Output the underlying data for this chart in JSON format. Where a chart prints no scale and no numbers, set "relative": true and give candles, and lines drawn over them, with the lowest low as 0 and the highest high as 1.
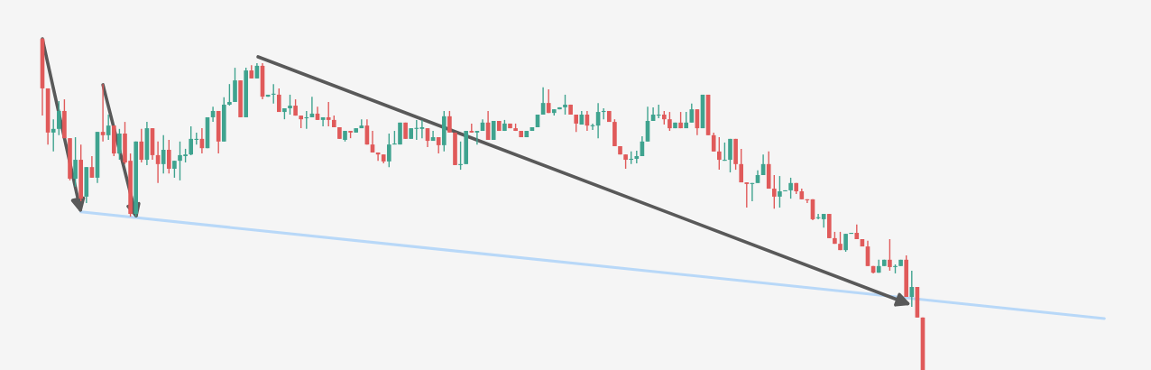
{
  "chart_data": {
    "type": "candlestick",
    "relative": true,
    "categories": [
      null,
      null,
      null,
      null,
      null,
      null,
      null,
      null,
      null,
      null,
      null,
      null,
      null,
      null,
      null,
      null,
      null,
      null,
      null,
      null,
      null,
      null,
      null,
      null,
      null,
      null,
      null,
      null,
      null,
      null,
      null,
      null,
      null,
      null,
      null,
      null,
      null,
      null,
      null,
      null,
      null,
      null,
      null,
      null,
      null,
      null,
      null,
      null,
      null,
      null,
      null,
      null,
      null,
      null,
      null,
      null,
      null,
      null,
      null,
      null,
      null,
      null,
      null,
      null,
      null,
      null,
      null,
      null,
      null,
      null,
      null,
      null,
      null,
      null,
      null,
      null,
      null,
      null,
      null,
      null,
      null,
      null,
      null,
      null,
      null,
      null,
      null,
      null,
      null,
      null,
      null,
      null,
      null,
      null,
      null,
      null,
      null,
      null,
      null,
      null,
      null,
      null,
      null,
      null,
      null,
      null,
      null,
      null,
      null,
      null,
      null,
      null,
      null,
      null,
      null,
      null,
      null,
      null,
      null,
      null,
      null,
      null,
      null,
      null,
      null,
      null,
      null,
      null,
      null,
      null,
      null,
      null,
      null,
      null,
      null,
      null,
      null,
      null,
      null,
      null,
      null,
      null,
      null,
      null,
      null,
      null,
      null,
      null,
      null,
      null,
      null,
      null,
      null,
      null,
      null,
      null,
      null,
      null,
      null,
      null,
      null,
      null,
      null,
      null,
      null,
      null,
      null,
      null,
      null,
      null,
      null,
      null,
      null,
      null,
      null,
      null,
      null,
      null,
      null,
      null,
      null,
      null,
      null,
      null,
      null,
      null,
      null,
      null,
      null,
      null,
      null,
      null,
      null,
      null
    ],
    "ohlc": [
      [
        0.997,
        1.0,
        0.766,
        0.848
      ],
      [
        0.848,
        0.848,
        0.679,
        0.715
      ],
      [
        0.715,
        0.755,
        0.658,
        0.726
      ],
      [
        0.726,
        0.81,
        0.707,
        0.78
      ],
      [
        0.78,
        0.815,
        0.698,
        0.698
      ],
      [
        0.698,
        0.698,
        0.571,
        0.576
      ],
      [
        0.576,
        0.701,
        0.552,
        0.633
      ],
      [
        0.633,
        0.679,
        0.508,
        0.516
      ],
      [
        0.522,
        0.611,
        0.503,
        0.611
      ],
      [
        0.611,
        0.644,
        0.579,
        0.579
      ],
      [
        0.579,
        0.717,
        0.563,
        0.717
      ],
      [
        0.717,
        0.861,
        0.688,
        0.707
      ],
      [
        0.707,
        0.769,
        0.693,
        0.736
      ],
      [
        0.736,
        0.736,
        0.644,
        0.652
      ],
      [
        0.652,
        0.726,
        0.633,
        0.712
      ],
      [
        0.712,
        0.747,
        0.62,
        0.625
      ],
      [
        0.63,
        0.652,
        0.462,
        0.47
      ],
      [
        0.47,
        0.688,
        0.462,
        0.688
      ],
      [
        0.688,
        0.726,
        0.625,
        0.633
      ],
      [
        0.633,
        0.747,
        0.617,
        0.728
      ],
      [
        0.728,
        0.728,
        0.633,
        0.647
      ],
      [
        0.647,
        0.688,
        0.563,
        0.62
      ],
      [
        0.62,
        0.707,
        0.592,
        0.663
      ],
      [
        0.663,
        0.693,
        0.592,
        0.606
      ],
      [
        0.606,
        0.63,
        0.579,
        0.63
      ],
      [
        0.63,
        0.688,
        0.571,
        0.647
      ],
      [
        0.644,
        0.666,
        0.625,
        0.649
      ],
      [
        0.649,
        0.734,
        0.647,
        0.696
      ],
      [
        0.693,
        0.715,
        0.679,
        0.696
      ],
      [
        0.696,
        0.728,
        0.652,
        0.668
      ],
      [
        0.668,
        0.761,
        0.668,
        0.761
      ],
      [
        0.761,
        0.793,
        0.747,
        0.78
      ],
      [
        0.78,
        0.78,
        0.652,
        0.688
      ],
      [
        0.688,
        0.821,
        0.688,
        0.799
      ],
      [
        0.799,
        0.861,
        0.796,
        0.807
      ],
      [
        0.807,
        0.91,
        0.807,
        0.872
      ],
      [
        0.872,
        0.872,
        0.761,
        0.761
      ],
      [
        0.761,
        0.91,
        0.761,
        0.902
      ],
      [
        0.902,
        0.918,
        0.878,
        0.878
      ],
      [
        0.878,
        0.924,
        0.878,
        0.916
      ],
      [
        0.916,
        0.924,
        0.815,
        0.823
      ],
      [
        0.823,
        0.829,
        0.823,
        0.829
      ],
      [
        0.829,
        0.861,
        0.802,
        0.832
      ],
      [
        0.829,
        0.848,
        0.777,
        0.777
      ],
      [
        0.777,
        0.788,
        0.755,
        0.788
      ],
      [
        0.788,
        0.829,
        0.769,
        0.796
      ],
      [
        0.796,
        0.815,
        0.766,
        0.766
      ],
      [
        0.766,
        0.766,
        0.728,
        0.755
      ],
      [
        0.758,
        0.78,
        0.726,
        0.761
      ],
      [
        0.761,
        0.823,
        0.761,
        0.772
      ],
      [
        0.772,
        0.793,
        0.753,
        0.753
      ],
      [
        0.753,
        0.761,
        0.734,
        0.761
      ],
      [
        0.761,
        0.807,
        0.734,
        0.753
      ],
      [
        0.753,
        0.766,
        0.731,
        0.731
      ],
      [
        0.731,
        0.731,
        0.696,
        0.696
      ],
      [
        0.693,
        0.72,
        0.688,
        0.72
      ],
      [
        0.72,
        0.72,
        0.698,
        0.715
      ],
      [
        0.715,
        0.728,
        0.715,
        0.728
      ],
      [
        0.728,
        0.755,
        0.728,
        0.736
      ],
      [
        0.736,
        0.755,
        0.679,
        0.679
      ],
      [
        0.679,
        0.72,
        0.655,
        0.655
      ],
      [
        0.655,
        0.655,
        0.63,
        0.649
      ],
      [
        0.649,
        0.649,
        0.622,
        0.628
      ],
      [
        0.628,
        0.712,
        0.611,
        0.679
      ],
      [
        0.679,
        0.72,
        0.679,
        0.682
      ],
      [
        0.679,
        0.745,
        0.679,
        0.745
      ],
      [
        0.745,
        0.745,
        0.696,
        0.696
      ],
      [
        0.696,
        0.728,
        0.696,
        0.728
      ],
      [
        0.726,
        0.753,
        0.693,
        0.728
      ],
      [
        0.726,
        0.753,
        0.698,
        0.731
      ],
      [
        0.728,
        0.728,
        0.671,
        0.69
      ],
      [
        0.69,
        0.72,
        0.69,
        0.701
      ],
      [
        0.701,
        0.701,
        0.652,
        0.677
      ],
      [
        0.677,
        0.78,
        0.658,
        0.764
      ],
      [
        0.764,
        0.78,
        0.715,
        0.715
      ],
      [
        0.715,
        0.715,
        0.617,
        0.617
      ],
      [
        0.617,
        0.688,
        0.603,
        0.62
      ],
      [
        0.62,
        0.72,
        0.62,
        0.72
      ],
      [
        0.72,
        0.742,
        0.715,
        0.715
      ],
      [
        0.715,
        0.72,
        0.679,
        0.72
      ],
      [
        0.72,
        0.755,
        0.72,
        0.745
      ],
      [
        0.745,
        0.78,
        0.693,
        0.693
      ],
      [
        0.693,
        0.75,
        0.693,
        0.75
      ],
      [
        0.75,
        0.75,
        0.72,
        0.72
      ],
      [
        0.72,
        0.753,
        0.72,
        0.742
      ],
      [
        0.742,
        0.742,
        0.728,
        0.728
      ],
      [
        0.728,
        0.742,
        0.72,
        0.72
      ],
      [
        0.72,
        0.72,
        0.701,
        0.701
      ],
      [
        0.701,
        0.72,
        0.701,
        0.72
      ],
      [
        0.72,
        0.731,
        0.72,
        0.731
      ],
      [
        0.731,
        0.769,
        0.731,
        0.769
      ],
      [
        0.769,
        0.851,
        0.769,
        0.804
      ],
      [
        0.804,
        0.845,
        0.774,
        0.774
      ],
      [
        0.774,
        0.785,
        0.766,
        0.785
      ],
      [
        0.785,
        0.791,
        0.785,
        0.791
      ],
      [
        0.791,
        0.829,
        0.769,
        0.799
      ],
      [
        0.799,
        0.799,
        0.769,
        0.769
      ],
      [
        0.769,
        0.769,
        0.717,
        0.742
      ],
      [
        0.739,
        0.78,
        0.739,
        0.769
      ],
      [
        0.769,
        0.78,
        0.72,
        0.736
      ],
      [
        0.734,
        0.742,
        0.723,
        0.736
      ],
      [
        0.736,
        0.804,
        0.698,
        0.777
      ],
      [
        0.777,
        0.788,
        0.755,
        0.78
      ],
      [
        0.78,
        0.78,
        0.747,
        0.747
      ],
      [
        0.747,
        0.755,
        0.674,
        0.674
      ],
      [
        0.674,
        0.674,
        0.649,
        0.649
      ],
      [
        0.649,
        0.649,
        0.606,
        0.633
      ],
      [
        0.633,
        0.658,
        0.62,
        0.636
      ],
      [
        0.636,
        0.66,
        0.622,
        0.644
      ],
      [
        0.644,
        0.704,
        0.644,
        0.688
      ],
      [
        0.688,
        0.793,
        0.688,
        0.75
      ],
      [
        0.75,
        0.791,
        0.75,
        0.769
      ],
      [
        0.766,
        0.799,
        0.758,
        0.769
      ],
      [
        0.769,
        0.78,
        0.739,
        0.755
      ],
      [
        0.755,
        0.777,
        0.72,
        0.728
      ],
      [
        0.728,
        0.745,
        0.728,
        0.745
      ],
      [
        0.745,
        0.777,
        0.728,
        0.728
      ],
      [
        0.728,
        0.777,
        0.728,
        0.745
      ],
      [
        0.745,
        0.802,
        0.745,
        0.785
      ],
      [
        0.785,
        0.785,
        0.707,
        0.728
      ],
      [
        0.728,
        0.829,
        0.728,
        0.829
      ],
      [
        0.829,
        0.829,
        0.707,
        0.707
      ],
      [
        0.707,
        0.715,
        0.658,
        0.658
      ],
      [
        0.658,
        0.701,
        0.603,
        0.633
      ],
      [
        0.63,
        0.685,
        0.63,
        0.633
      ],
      [
        0.633,
        0.696,
        0.595,
        0.696
      ],
      [
        0.696,
        0.696,
        0.603,
        0.62
      ],
      [
        0.62,
        0.666,
        0.565,
        0.565
      ],
      [
        0.565,
        0.565,
        0.489,
        0.56
      ],
      [
        0.56,
        0.563,
        0.508,
        0.563
      ],
      [
        0.563,
        0.601,
        0.563,
        0.587
      ],
      [
        0.587,
        0.649,
        0.587,
        0.62
      ],
      [
        0.62,
        0.658,
        0.546,
        0.546
      ],
      [
        0.546,
        0.587,
        0.486,
        0.522
      ],
      [
        0.522,
        0.584,
        0.489,
        0.538
      ],
      [
        0.538,
        0.541,
        0.538,
        0.541
      ],
      [
        0.541,
        0.579,
        0.516,
        0.563
      ],
      [
        0.563,
        0.563,
        0.53,
        0.538
      ],
      [
        0.538,
        0.546,
        0.514,
        0.514
      ],
      [
        0.514,
        0.514,
        0.503,
        0.511
      ],
      [
        0.514,
        0.514,
        0.451,
        0.454
      ],
      [
        0.457,
        0.47,
        0.454,
        0.459
      ],
      [
        0.454,
        0.47,
        0.429,
        0.47
      ],
      [
        0.47,
        0.47,
        0.397,
        0.397
      ],
      [
        0.397,
        0.416,
        0.38,
        0.38
      ],
      [
        0.38,
        0.416,
        0.361,
        0.361
      ],
      [
        0.361,
        0.41,
        0.356,
        0.41
      ],
      [
        0.41,
        0.413,
        0.41,
        0.413
      ],
      [
        0.413,
        0.438,
        0.394,
        0.394
      ],
      [
        0.394,
        0.394,
        0.372,
        0.372
      ],
      [
        0.372,
        0.389,
        0.313,
        0.313
      ],
      [
        0.313,
        0.313,
        0.291,
        0.293
      ],
      [
        0.293,
        0.332,
        0.293,
        0.313
      ],
      [
        0.313,
        0.332,
        0.313,
        0.332
      ],
      [
        0.332,
        0.394,
        0.299,
        0.31
      ],
      [
        0.31,
        0.318,
        0.291,
        0.313
      ],
      [
        0.313,
        0.332,
        0.313,
        0.332
      ],
      [
        0.332,
        0.345,
        0.22,
        0.22
      ],
      [
        0.22,
        0.299,
        0.19,
        0.25
      ],
      [
        0.25,
        0.25,
        0.158,
        0.158
      ],
      [
        0.158,
        0.158,
        0.0,
        0.0
      ],
      null,
      null,
      null,
      null,
      null,
      null,
      null,
      null,
      null,
      null,
      null,
      null,
      null,
      null,
      null,
      null,
      null,
      null,
      null,
      null,
      null,
      null,
      null,
      null,
      null,
      null,
      null,
      null,
      null,
      null,
      null,
      null,
      null
    ],
    "series": [
      {
        "type": "line",
        "color": "#b8d8f8",
        "values": [
          null,
          null,
          null,
          null,
          null,
          null,
          null,
          0.476,
          null,
          null,
          null,
          null,
          null,
          null,
          null,
          null,
          null,
          null,
          null,
          null,
          null,
          null,
          null,
          null,
          null,
          null,
          null,
          null,
          null,
          null,
          null,
          null,
          null,
          null,
          null,
          null,
          null,
          null,
          null,
          null,
          null,
          null,
          null,
          null,
          null,
          null,
          null,
          null,
          null,
          null,
          null,
          null,
          null,
          null,
          null,
          null,
          null,
          null,
          null,
          null,
          null,
          null,
          null,
          null,
          null,
          null,
          null,
          null,
          null,
          null,
          null,
          null,
          null,
          null,
          null,
          null,
          null,
          null,
          null,
          null,
          null,
          null,
          null,
          null,
          null,
          null,
          null,
          null,
          null,
          null,
          null,
          null,
          null,
          null,
          null,
          null,
          null,
          null,
          null,
          null,
          null,
          null,
          null,
          null,
          null,
          null,
          null,
          null,
          null,
          null,
          null,
          null,
          null,
          null,
          null,
          null,
          null,
          null,
          null,
          null,
          null,
          null,
          null,
          null,
          null,
          null,
          null,
          null,
          null,
          null,
          null,
          null,
          null,
          null,
          null,
          null,
          null,
          null,
          null,
          null,
          null,
          null,
          null,
          null,
          null,
          null,
          null,
          null,
          null,
          null,
          null,
          null,
          null,
          null,
          null,
          null,
          null,
          null,
          null,
          null,
          null,
          null,
          null,
          null,
          null,
          null,
          null,
          null,
          null,
          null,
          null,
          null,
          null,
          null,
          null,
          null,
          null,
          null,
          null,
          null,
          null,
          null,
          null,
          null,
          null,
          null,
          null,
          null,
          null,
          null,
          null,
          null,
          null,
          0.155
        ]
      }
    ]
  }
}
